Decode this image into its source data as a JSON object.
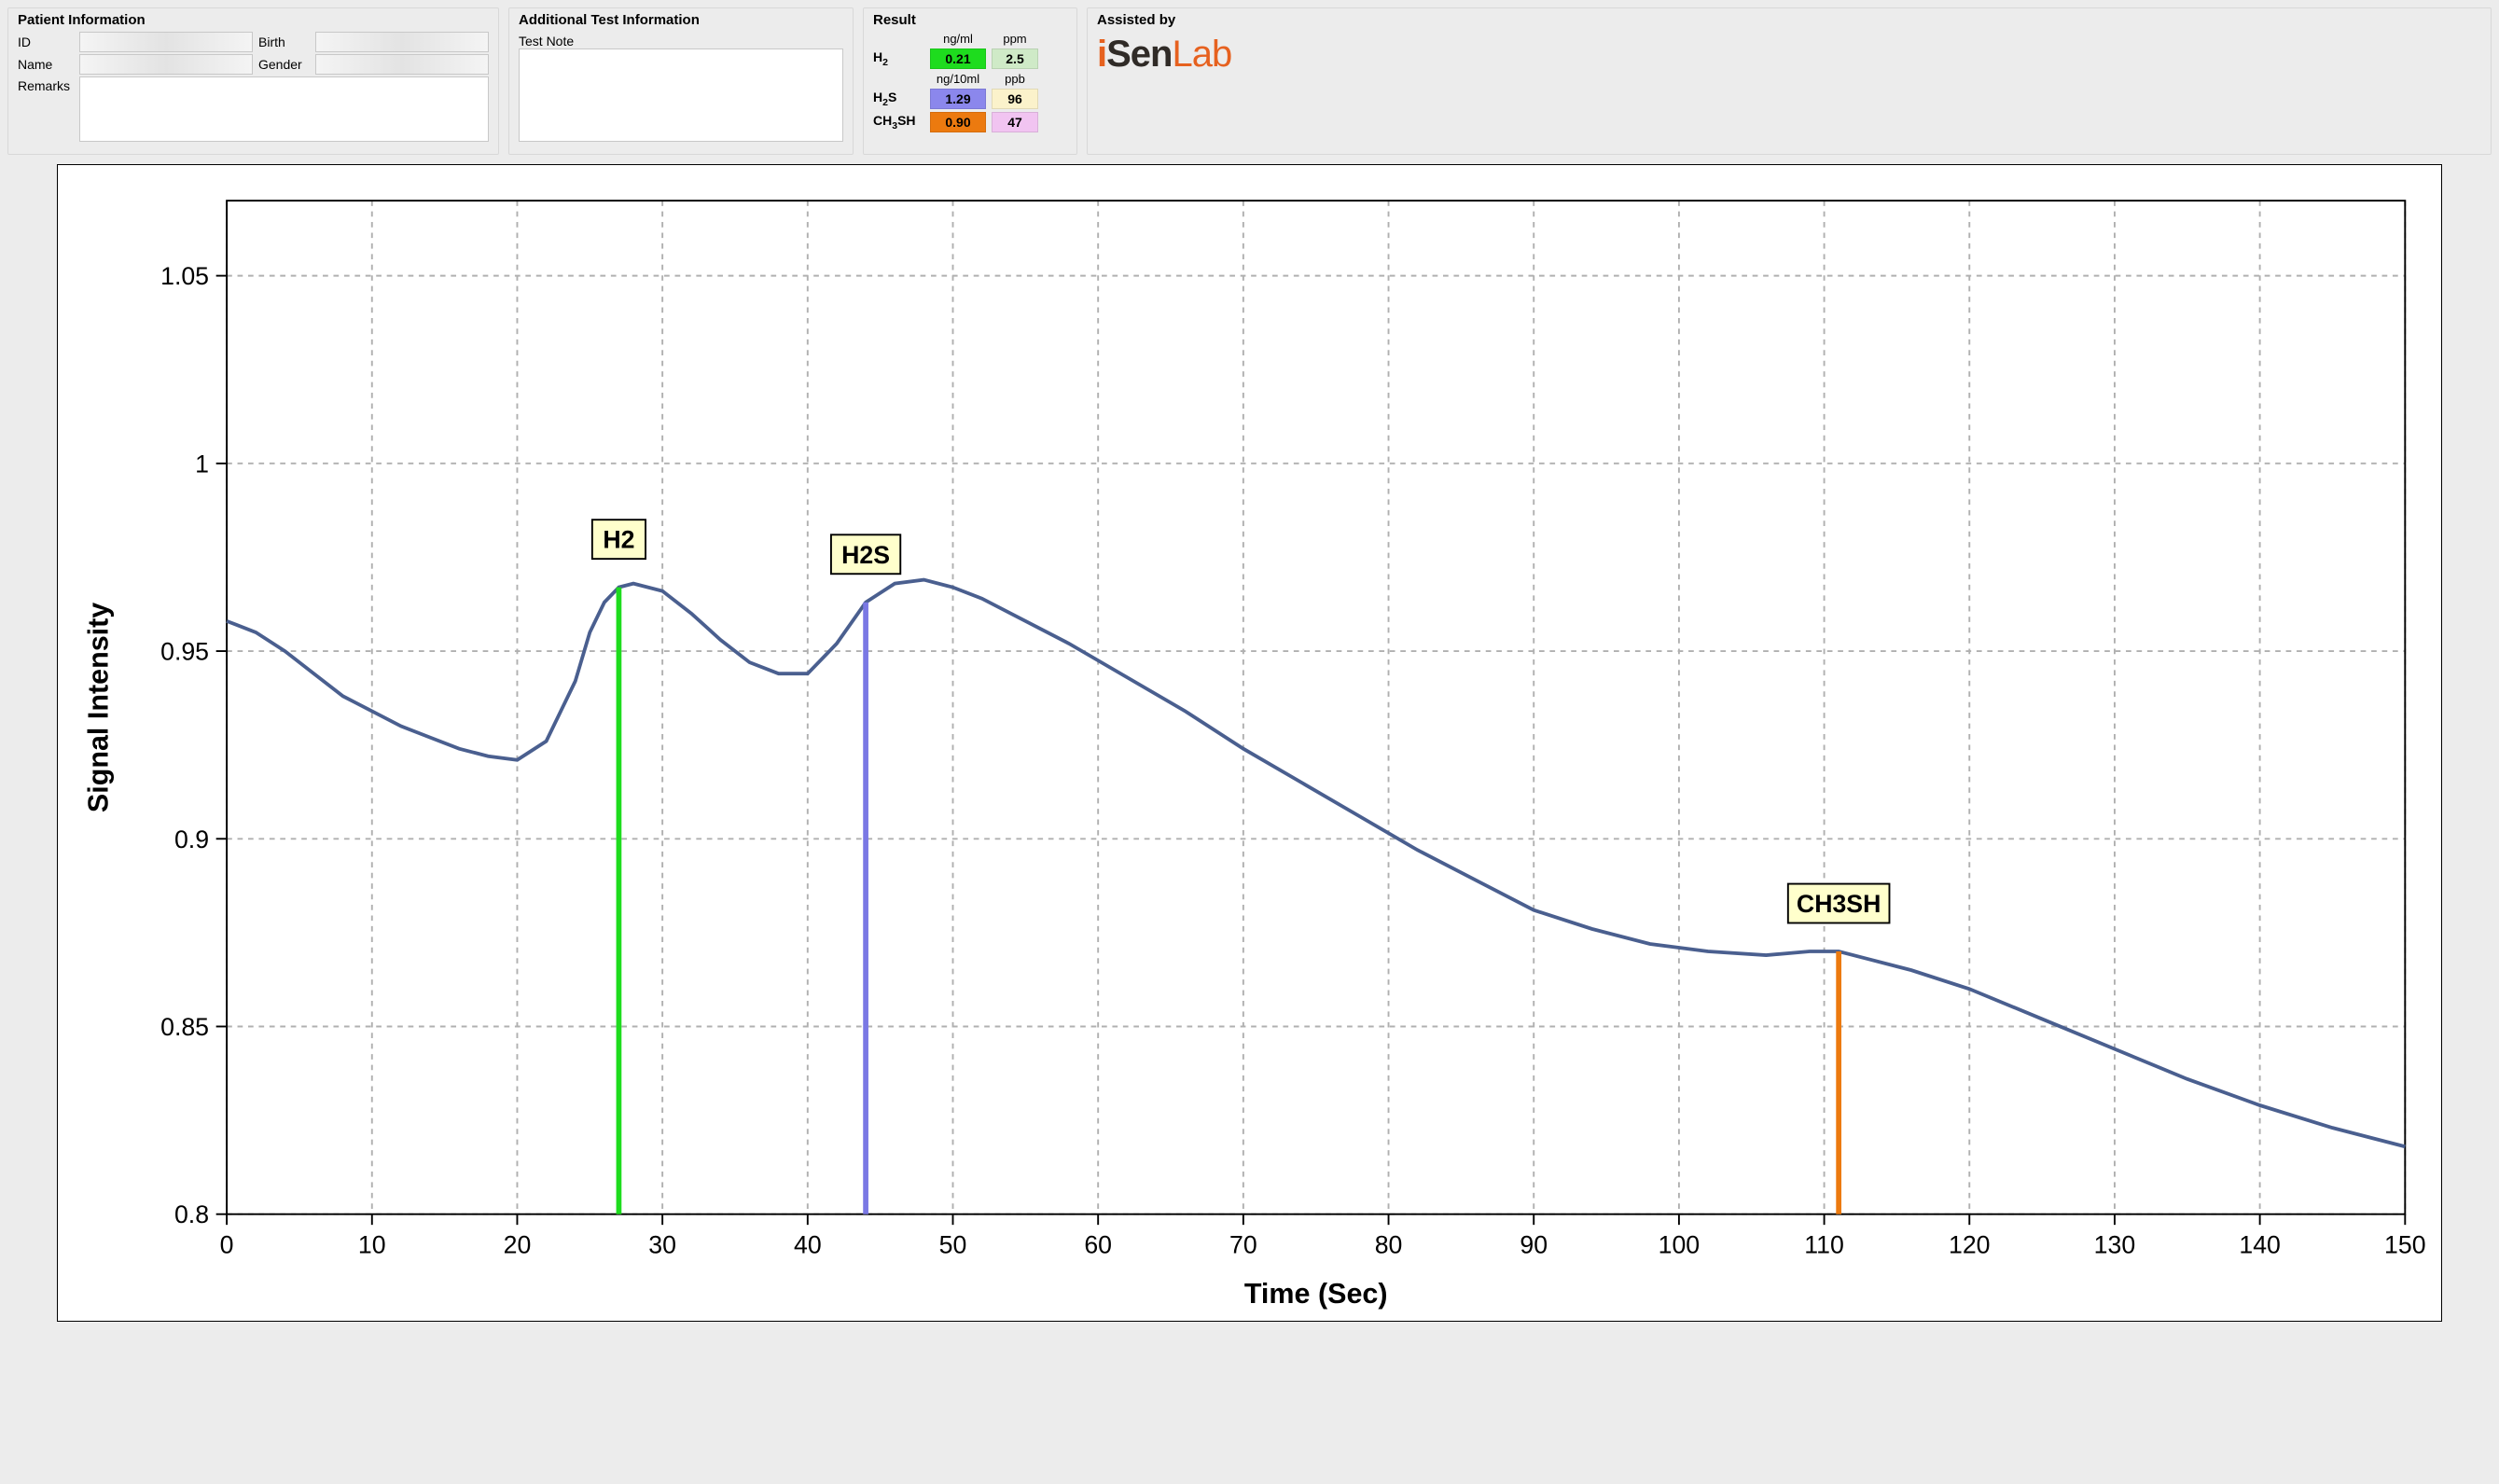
{
  "patient": {
    "title": "Patient Information",
    "id_label": "ID",
    "birth_label": "Birth",
    "name_label": "Name",
    "gender_label": "Gender",
    "remarks_label": "Remarks",
    "id_value": "",
    "birth_value": "",
    "name_value": "",
    "gender_value": "",
    "remarks_value": ""
  },
  "testinfo": {
    "title": "Additional Test Information",
    "note_label": "Test Note",
    "note_value": ""
  },
  "result": {
    "title": "Result",
    "col1_header_a": "ng/ml",
    "col2_header_a": "ppm",
    "col1_header_b": "ng/10ml",
    "col2_header_b": "ppb",
    "rows": [
      {
        "name_html": "H<sub>2</sub>",
        "v1": "0.21",
        "v2": "2.5",
        "c1": "#1edc1e",
        "c2": "#cfeac7"
      },
      {
        "name_html": "H<sub>2</sub>S",
        "v1": "1.29",
        "v2": "96",
        "c1": "#8b87ec",
        "c2": "#fbf2cb"
      },
      {
        "name_html": "CH<sub>3</sub>SH",
        "v1": "0.90",
        "v2": "47",
        "c1": "#ec7a0f",
        "c2": "#f1c4f1"
      }
    ]
  },
  "assist": {
    "title": "Assisted by",
    "logo_i": "i",
    "logo_sen": "Sen",
    "logo_lab": "Lab"
  },
  "chart": {
    "type": "line",
    "xlabel": "Time (Sec)",
    "ylabel": "Signal Intensity",
    "xlim": [
      0,
      150
    ],
    "ylim": [
      0.8,
      1.07
    ],
    "xticks": [
      0,
      10,
      20,
      30,
      40,
      50,
      60,
      70,
      80,
      90,
      100,
      110,
      120,
      130,
      140,
      150
    ],
    "yticks": [
      0.8,
      0.85,
      0.9,
      0.95,
      1,
      1.05
    ],
    "background_color": "#ffffff",
    "grid_color": "#b0b0b0",
    "grid_dash": "3 3",
    "axis_color": "#000000",
    "line_color": "#4a5f8f",
    "line_width": 2,
    "label_fontsize": 16,
    "tick_fontsize": 14,
    "markers": [
      {
        "label": "H2",
        "x": 27,
        "color": "#1edc1e"
      },
      {
        "label": "H2S",
        "x": 44,
        "color": "#7a78e4"
      },
      {
        "label": "CH3SH",
        "x": 111,
        "color": "#ec7a0f"
      }
    ],
    "series": [
      [
        0,
        0.958
      ],
      [
        2,
        0.955
      ],
      [
        4,
        0.95
      ],
      [
        6,
        0.944
      ],
      [
        8,
        0.938
      ],
      [
        10,
        0.934
      ],
      [
        12,
        0.93
      ],
      [
        14,
        0.927
      ],
      [
        16,
        0.924
      ],
      [
        18,
        0.922
      ],
      [
        20,
        0.921
      ],
      [
        22,
        0.926
      ],
      [
        24,
        0.942
      ],
      [
        25,
        0.955
      ],
      [
        26,
        0.963
      ],
      [
        27,
        0.967
      ],
      [
        28,
        0.968
      ],
      [
        30,
        0.966
      ],
      [
        32,
        0.96
      ],
      [
        34,
        0.953
      ],
      [
        36,
        0.947
      ],
      [
        38,
        0.944
      ],
      [
        40,
        0.944
      ],
      [
        42,
        0.952
      ],
      [
        44,
        0.963
      ],
      [
        46,
        0.968
      ],
      [
        48,
        0.969
      ],
      [
        50,
        0.967
      ],
      [
        52,
        0.964
      ],
      [
        54,
        0.96
      ],
      [
        58,
        0.952
      ],
      [
        62,
        0.943
      ],
      [
        66,
        0.934
      ],
      [
        70,
        0.924
      ],
      [
        74,
        0.915
      ],
      [
        78,
        0.906
      ],
      [
        82,
        0.897
      ],
      [
        86,
        0.889
      ],
      [
        90,
        0.881
      ],
      [
        94,
        0.876
      ],
      [
        98,
        0.872
      ],
      [
        102,
        0.87
      ],
      [
        106,
        0.869
      ],
      [
        109,
        0.87
      ],
      [
        111,
        0.87
      ],
      [
        113,
        0.868
      ],
      [
        116,
        0.865
      ],
      [
        120,
        0.86
      ],
      [
        125,
        0.852
      ],
      [
        130,
        0.844
      ],
      [
        135,
        0.836
      ],
      [
        140,
        0.829
      ],
      [
        145,
        0.823
      ],
      [
        150,
        0.818
      ]
    ]
  }
}
